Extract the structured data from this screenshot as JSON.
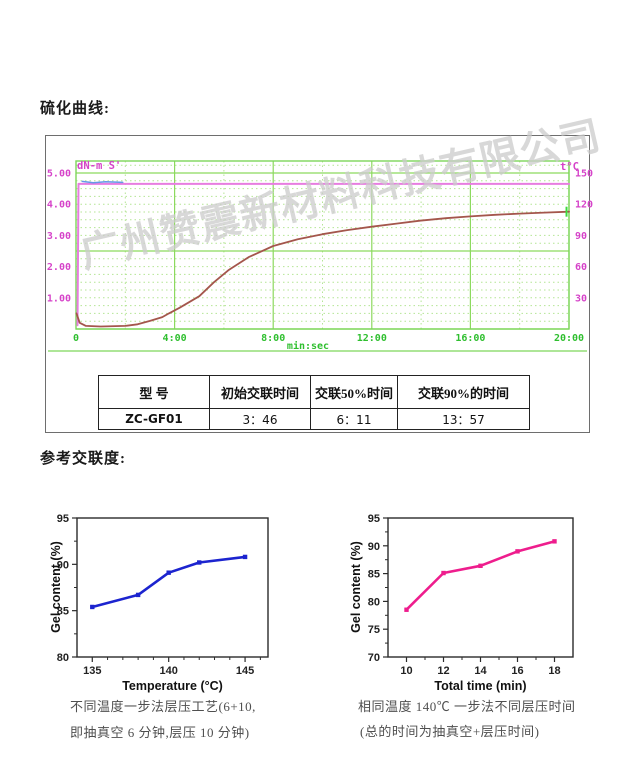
{
  "sections": {
    "cure_title": "硫化曲线:",
    "ref_title": "参考交联度:"
  },
  "watermark": {
    "text": "广州赞震新材料科技有限公司"
  },
  "chart_data": [
    {
      "id": "rheometer-cure-curve",
      "type": "line",
      "left_units_label": "dN-m  S'",
      "right_units_label": "t°C",
      "x_units_label": "min:sec",
      "xlim": [
        0,
        20
      ],
      "ylim": [
        0,
        5.385
      ],
      "y2lim": [
        0,
        161.5
      ],
      "yticks": {
        "values": [
          5,
          4,
          3,
          2,
          1
        ],
        "labels": [
          "5.00",
          "4.00",
          "3.00",
          "2.00",
          "1.00"
        ]
      },
      "y2ticks": {
        "values": [
          5,
          4,
          3,
          2,
          1
        ],
        "labels": [
          "150",
          "120",
          "90",
          "60",
          "30"
        ]
      },
      "xticks": {
        "values": [
          0,
          4,
          8,
          12,
          16,
          20
        ],
        "labels": [
          "0",
          "4:00",
          "8:00",
          "12:00",
          "16:00",
          "20:00"
        ]
      },
      "grid": {
        "h_major": [
          0,
          2.5,
          5
        ],
        "h_minor_step": 0.25,
        "v_major": [
          4,
          8,
          12,
          16,
          20
        ],
        "v_minor_step": 2
      },
      "colors": {
        "grid_major": "#8cd95e",
        "grid_minor": "#b4e594",
        "border": "#7dd65a",
        "left_text": "#d643c9",
        "right_text": "#d643c9",
        "bottom_text": "#2fbf2f"
      },
      "series": [
        {
          "name": "temperature-setpoint",
          "color": "#e77de0",
          "width": 2,
          "points": [
            [
              0.06,
              0.12
            ],
            [
              0.1,
              4.65
            ],
            [
              20,
              4.65
            ]
          ]
        },
        {
          "name": "torque-S-prime",
          "color": "#a4564c",
          "width": 1.8,
          "points": [
            [
              0.02,
              0.5
            ],
            [
              0.15,
              0.2
            ],
            [
              0.4,
              0.1
            ],
            [
              1,
              0.08
            ],
            [
              2,
              0.1
            ],
            [
              2.5,
              0.15
            ],
            [
              3,
              0.26
            ],
            [
              3.5,
              0.38
            ],
            [
              3.77,
              0.5
            ],
            [
              4.2,
              0.68
            ],
            [
              5,
              1.05
            ],
            [
              5.6,
              1.5
            ],
            [
              6.18,
              1.88
            ],
            [
              7,
              2.3
            ],
            [
              8,
              2.66
            ],
            [
              9,
              2.88
            ],
            [
              10,
              3.04
            ],
            [
              11,
              3.17
            ],
            [
              12,
              3.28
            ],
            [
              13,
              3.38
            ],
            [
              13.95,
              3.47
            ],
            [
              15,
              3.55
            ],
            [
              16,
              3.61
            ],
            [
              17,
              3.66
            ],
            [
              18,
              3.7
            ],
            [
              19,
              3.73
            ],
            [
              20,
              3.76
            ]
          ]
        },
        {
          "name": "start-blue-trace",
          "color": "#6699e8",
          "width": 1.5,
          "points": [
            [
              0.25,
              4.73
            ],
            [
              0.7,
              4.69
            ],
            [
              1.2,
              4.72
            ],
            [
              1.9,
              4.7
            ]
          ]
        }
      ],
      "end_marker": {
        "x": 19.9,
        "y": 3.76,
        "color": "#3ddc3d"
      }
    },
    {
      "id": "gel-vs-temperature",
      "type": "line",
      "ylabel": "Gel content (%)",
      "xlabel": "Temperature (°C)",
      "xlim": [
        134,
        146.5
      ],
      "ylim": [
        80,
        95
      ],
      "xticks": [
        135,
        140,
        145
      ],
      "x_minor_step": 1,
      "yticks": [
        80,
        85,
        90,
        95
      ],
      "y_minor_step": 2.5,
      "series": [
        {
          "name": "gel-content-vs-temperature",
          "color": "#1c24cf",
          "width": 2.6,
          "marker": "square",
          "points": [
            [
              135,
              85.4
            ],
            [
              138,
              86.7
            ],
            [
              140,
              89.1
            ],
            [
              142,
              90.2
            ],
            [
              145,
              90.8
            ]
          ]
        }
      ]
    },
    {
      "id": "gel-vs-total-time",
      "type": "line",
      "ylabel": "Gel content (%)",
      "xlabel": "Total time (min)",
      "xlim": [
        9,
        19
      ],
      "ylim": [
        70,
        95
      ],
      "xticks": [
        10,
        12,
        14,
        16,
        18
      ],
      "x_minor_step": 1,
      "yticks": [
        70,
        75,
        80,
        85,
        90,
        95
      ],
      "y_minor_step": 2.5,
      "series": [
        {
          "name": "gel-content-vs-time",
          "color": "#ee1d8d",
          "width": 2.6,
          "marker": "square",
          "points": [
            [
              10,
              78.5
            ],
            [
              12,
              85.1
            ],
            [
              14,
              86.4
            ],
            [
              16,
              89
            ],
            [
              18,
              90.8
            ]
          ]
        }
      ]
    }
  ],
  "refTable": {
    "headers": [
      "型 号",
      "初始交联时间",
      "交联50%时间",
      "交联90%的时间"
    ],
    "row": [
      "ZC-GF01",
      "3：46",
      "6：11",
      "13：57"
    ]
  },
  "captions": {
    "left": [
      "不同温度一步法层压工艺(6+10,",
      "即抽真空 6 分钟,层压 10 分钟)"
    ],
    "right": [
      "相同温度 140℃ 一步法不同层压时间",
      "(总的时间为抽真空+层压时间)"
    ]
  }
}
